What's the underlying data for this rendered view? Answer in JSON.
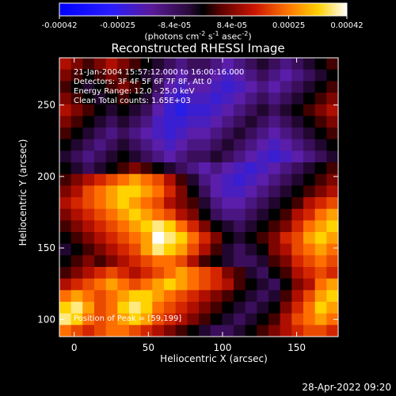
{
  "chart_data": {
    "type": "heatmap",
    "title": "Reconstructed RHESSI Image",
    "xlabel": "Heliocentric X (arcsec)",
    "ylabel": "Heliocentric Y (arcsec)",
    "xlim": [
      -10,
      178
    ],
    "ylim": [
      88,
      283
    ],
    "xticks": [
      0,
      50,
      100,
      150
    ],
    "yticks": [
      100,
      150,
      200,
      250
    ],
    "colorbar": {
      "min": -0.00042,
      "max": 0.00042,
      "ticks": [
        "-0.00042",
        "-0.00025",
        "-8.4e-05",
        "8.4e-05",
        "0.00025",
        "0.00042"
      ],
      "units_line1": "(photons cm",
      "units_sup1": "-2",
      "units_mid": " s",
      "units_sup2": "-1",
      "units_tail": " asec",
      "units_sup3": "-2",
      "units_close": ")"
    },
    "annotations": [
      "21-Jan-2004 15:57:12.000 to 16:00:16.000",
      "Detectors: 3F 4F 5F 6F 7F 8F, Att 0",
      "Energy Range: 12.0 - 25.0 keV",
      "Clean     Total counts: 1.65E+03"
    ],
    "peak_label": "Position of Peak = [59,199]",
    "peak": [
      59,
      199
    ],
    "grid_x_range": [
      -10,
      178
    ],
    "grid_y_range": [
      88,
      283
    ],
    "grid_cols": 24,
    "grid_rows": 24,
    "values": [
      [
        0.3,
        0.2,
        0.1,
        0.2,
        0.3,
        0.2,
        0.1,
        0.0,
        -0.1,
        -0.2,
        -0.3,
        -0.2,
        -0.2,
        -0.3,
        -0.4,
        -0.3,
        -0.2,
        -0.1,
        -0.2,
        -0.3,
        -0.2,
        -0.1,
        0.0,
        0.1
      ],
      [
        0.2,
        0.1,
        0.0,
        0.1,
        0.2,
        0.1,
        0.0,
        -0.1,
        -0.2,
        -0.3,
        -0.4,
        -0.3,
        -0.3,
        -0.4,
        -0.5,
        -0.4,
        -0.3,
        -0.2,
        -0.3,
        -0.4,
        -0.3,
        -0.2,
        -0.1,
        0.0
      ],
      [
        0.1,
        0.0,
        -0.1,
        0.0,
        0.1,
        0.2,
        0.1,
        0.0,
        -0.2,
        -0.4,
        -0.5,
        -0.4,
        -0.4,
        -0.5,
        -0.6,
        -0.5,
        -0.4,
        -0.3,
        -0.4,
        -0.3,
        -0.2,
        -0.1,
        0.0,
        0.1
      ],
      [
        0.2,
        0.1,
        0.0,
        -0.1,
        0.0,
        0.1,
        0.0,
        -0.1,
        -0.3,
        -0.5,
        -0.6,
        -0.5,
        -0.5,
        -0.6,
        -0.5,
        -0.4,
        -0.3,
        -0.2,
        -0.3,
        -0.2,
        -0.1,
        0.0,
        0.1,
        0.2
      ],
      [
        0.3,
        0.2,
        0.1,
        0.0,
        -0.1,
        0.0,
        -0.1,
        -0.2,
        -0.4,
        -0.6,
        -0.7,
        -0.6,
        -0.6,
        -0.5,
        -0.4,
        -0.3,
        -0.2,
        -0.1,
        -0.2,
        -0.1,
        0.0,
        0.1,
        0.2,
        0.3
      ],
      [
        0.2,
        0.1,
        0.0,
        -0.1,
        -0.2,
        -0.1,
        -0.2,
        -0.3,
        -0.5,
        -0.6,
        -0.6,
        -0.5,
        -0.5,
        -0.4,
        -0.3,
        -0.2,
        -0.1,
        -0.2,
        -0.3,
        -0.2,
        -0.1,
        0.0,
        0.1,
        0.2
      ],
      [
        0.1,
        0.0,
        -0.1,
        -0.2,
        -0.3,
        -0.2,
        -0.3,
        -0.4,
        -0.5,
        -0.6,
        -0.5,
        -0.4,
        -0.4,
        -0.3,
        -0.2,
        -0.1,
        -0.2,
        -0.3,
        -0.4,
        -0.3,
        -0.2,
        -0.1,
        0.0,
        0.1
      ],
      [
        0.0,
        -0.1,
        -0.2,
        -0.3,
        -0.2,
        -0.1,
        -0.2,
        -0.3,
        -0.4,
        -0.5,
        -0.4,
        -0.3,
        -0.3,
        -0.2,
        -0.1,
        -0.2,
        -0.3,
        -0.4,
        -0.5,
        -0.4,
        -0.3,
        -0.2,
        -0.1,
        0.0
      ],
      [
        -0.1,
        -0.2,
        -0.3,
        -0.2,
        -0.1,
        0.0,
        -0.1,
        -0.2,
        -0.3,
        -0.4,
        -0.3,
        -0.2,
        -0.2,
        -0.1,
        -0.2,
        -0.3,
        -0.4,
        -0.5,
        -0.6,
        -0.5,
        -0.4,
        -0.3,
        -0.2,
        -0.1
      ],
      [
        0.0,
        -0.1,
        -0.2,
        -0.1,
        0.0,
        0.1,
        0.2,
        0.1,
        0.0,
        -0.1,
        -0.2,
        -0.3,
        -0.4,
        -0.3,
        -0.4,
        -0.5,
        -0.6,
        -0.5,
        -0.4,
        -0.3,
        -0.2,
        -0.1,
        0.0,
        0.1
      ],
      [
        0.1,
        0.2,
        0.3,
        0.4,
        0.5,
        0.6,
        0.7,
        0.6,
        0.5,
        0.3,
        0.1,
        -0.1,
        -0.3,
        -0.4,
        -0.5,
        -0.6,
        -0.5,
        -0.4,
        -0.3,
        -0.2,
        -0.1,
        0.0,
        0.1,
        0.2
      ],
      [
        0.2,
        0.3,
        0.5,
        0.6,
        0.7,
        0.8,
        0.8,
        0.7,
        0.6,
        0.4,
        0.2,
        0.0,
        -0.2,
        -0.4,
        -0.5,
        -0.5,
        -0.4,
        -0.3,
        -0.2,
        -0.1,
        0.0,
        0.1,
        0.2,
        0.3
      ],
      [
        0.3,
        0.4,
        0.5,
        0.6,
        0.7,
        0.8,
        0.7,
        0.6,
        0.5,
        0.3,
        0.2,
        0.1,
        -0.1,
        -0.3,
        -0.4,
        -0.4,
        -0.3,
        -0.2,
        -0.1,
        0.0,
        0.1,
        0.3,
        0.4,
        0.5
      ],
      [
        0.2,
        0.3,
        0.4,
        0.5,
        0.6,
        0.7,
        0.8,
        0.7,
        0.6,
        0.5,
        0.3,
        0.2,
        0.0,
        -0.2,
        -0.3,
        -0.3,
        -0.2,
        -0.1,
        0.0,
        0.1,
        0.3,
        0.4,
        0.6,
        0.7
      ],
      [
        0.1,
        0.2,
        0.3,
        0.4,
        0.5,
        0.6,
        0.7,
        0.8,
        0.9,
        0.8,
        0.6,
        0.4,
        0.2,
        0.0,
        -0.1,
        -0.2,
        -0.1,
        0.0,
        0.1,
        0.2,
        0.4,
        0.6,
        0.7,
        0.8
      ],
      [
        0.0,
        0.1,
        0.2,
        0.3,
        0.4,
        0.5,
        0.6,
        0.7,
        1.0,
        0.9,
        0.8,
        0.6,
        0.4,
        0.2,
        0.0,
        -0.1,
        0.0,
        0.1,
        0.2,
        0.4,
        0.5,
        0.7,
        0.8,
        0.7
      ],
      [
        -0.1,
        0.0,
        0.1,
        0.2,
        0.3,
        0.4,
        0.5,
        0.7,
        0.9,
        0.8,
        0.7,
        0.5,
        0.3,
        0.1,
        -0.1,
        -0.2,
        -0.1,
        0.0,
        0.2,
        0.3,
        0.5,
        0.6,
        0.7,
        0.6
      ],
      [
        0.0,
        0.1,
        0.2,
        0.1,
        0.2,
        0.3,
        0.4,
        0.5,
        0.6,
        0.6,
        0.5,
        0.3,
        0.1,
        0.0,
        -0.1,
        -0.2,
        -0.2,
        -0.1,
        0.1,
        0.2,
        0.4,
        0.5,
        0.6,
        0.5
      ],
      [
        0.1,
        0.2,
        0.3,
        0.4,
        0.5,
        0.4,
        0.3,
        0.4,
        0.5,
        0.6,
        0.7,
        0.6,
        0.5,
        0.4,
        0.2,
        0.1,
        -0.1,
        -0.2,
        0.0,
        0.1,
        0.3,
        0.4,
        0.5,
        0.4
      ],
      [
        0.3,
        0.4,
        0.5,
        0.6,
        0.7,
        0.6,
        0.5,
        0.6,
        0.7,
        0.8,
        0.7,
        0.6,
        0.5,
        0.4,
        0.3,
        0.1,
        0.0,
        -0.1,
        -0.2,
        0.0,
        0.2,
        0.3,
        0.6,
        0.7
      ],
      [
        0.6,
        0.7,
        0.6,
        0.5,
        0.6,
        0.7,
        0.8,
        0.8,
        0.7,
        0.6,
        0.5,
        0.4,
        0.3,
        0.2,
        0.1,
        0.0,
        -0.1,
        -0.2,
        -0.1,
        0.1,
        0.3,
        0.5,
        0.7,
        0.8
      ],
      [
        0.8,
        0.9,
        0.7,
        0.5,
        0.6,
        0.8,
        0.9,
        0.8,
        0.6,
        0.5,
        0.4,
        0.3,
        0.2,
        0.1,
        0.0,
        -0.1,
        -0.2,
        -0.1,
        0.0,
        0.2,
        0.4,
        0.6,
        0.8,
        0.7
      ],
      [
        0.9,
        0.8,
        0.6,
        0.5,
        0.6,
        0.7,
        0.8,
        0.7,
        0.5,
        0.4,
        0.3,
        0.2,
        0.1,
        0.0,
        -0.1,
        -0.2,
        -0.1,
        0.0,
        0.1,
        0.3,
        0.5,
        0.6,
        0.7,
        0.6
      ],
      [
        0.6,
        0.5,
        0.4,
        0.5,
        0.6,
        0.6,
        0.5,
        0.4,
        0.3,
        0.2,
        0.1,
        0.0,
        -0.1,
        -0.2,
        -0.2,
        -0.1,
        0.0,
        0.1,
        0.2,
        0.3,
        0.4,
        0.5,
        0.5,
        0.4
      ]
    ]
  },
  "footer": {
    "timestamp": "28-Apr-2022 09:20"
  }
}
